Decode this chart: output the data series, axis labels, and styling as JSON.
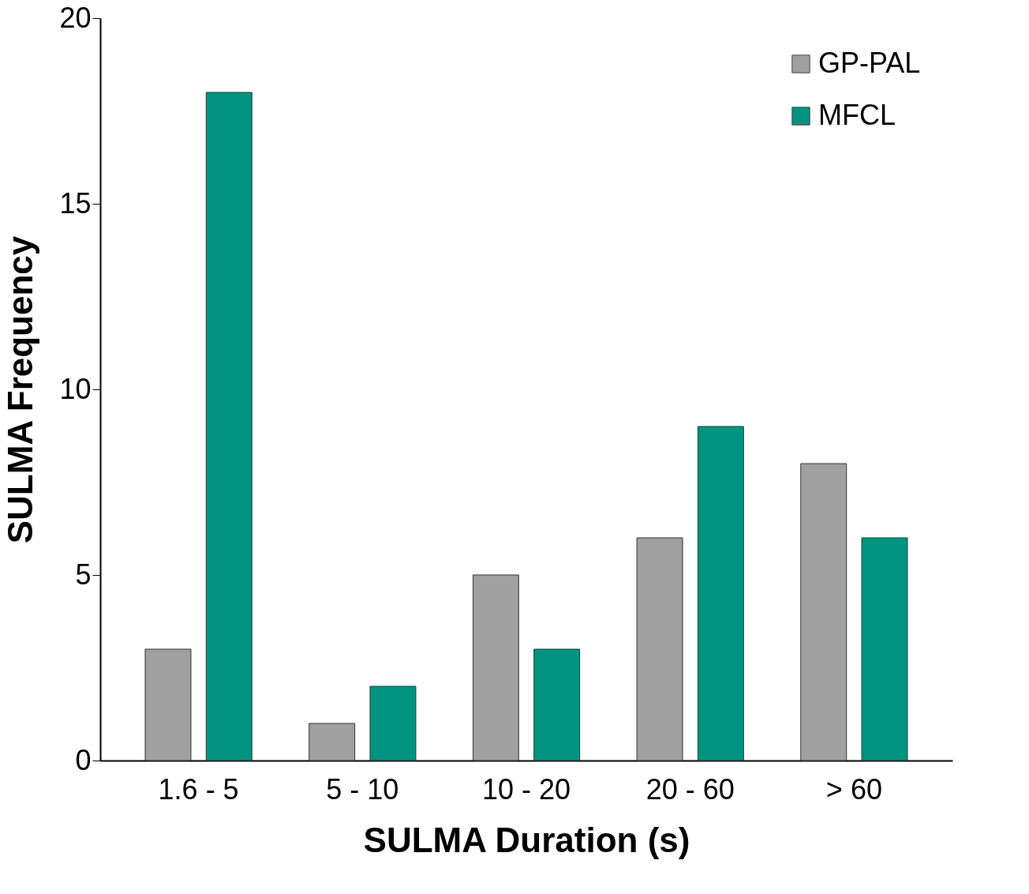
{
  "chart_data": {
    "type": "bar",
    "xlabel": "SULMA Duration (s)",
    "ylabel": "SULMA Frequency",
    "categories": [
      "1.6 - 5",
      "5 - 10",
      "10 - 20",
      "20 - 60",
      "> 60"
    ],
    "series": [
      {
        "name": "GP-PAL",
        "color": "#a0a0a0",
        "values": [
          3,
          1,
          5,
          6,
          8
        ]
      },
      {
        "name": "MFCL",
        "color": "#009480",
        "values": [
          18,
          2,
          3,
          9,
          6
        ]
      }
    ],
    "ylim": [
      0,
      20
    ],
    "yticks": [
      0,
      5,
      10,
      15,
      20
    ],
    "grid": false,
    "legend": "top right"
  }
}
